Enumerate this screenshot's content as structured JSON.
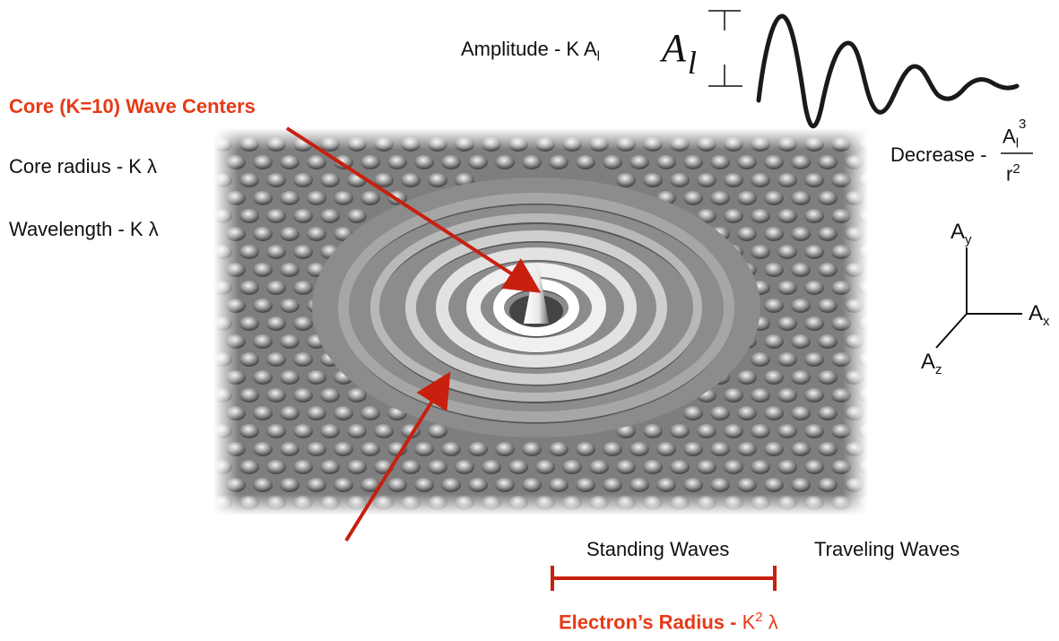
{
  "labels": {
    "amplitude": "Amplitude -  K A",
    "amplitude_sub": "l",
    "al_symbol": "A",
    "al_symbol_sub": "l",
    "core_title": "Core (K=10) Wave Centers",
    "core_radius": "Core radius - K λ",
    "wavelength": "Wavelength - K λ",
    "decrease_prefix": "Decrease -",
    "decrease_num": "A",
    "decrease_num_sub": "l",
    "decrease_num_sup": "3",
    "decrease_den": "r",
    "decrease_den_sup": "2",
    "axis_y": "A",
    "axis_y_sub": "y",
    "axis_x": "A",
    "axis_x_sub": "x",
    "axis_z": "A",
    "axis_z_sub": "z",
    "standing_waves": "Standing Waves",
    "traveling_waves": "Traveling Waves",
    "electron_radius_label": "Electron’s Radius - ",
    "electron_radius_value": "K",
    "electron_radius_sup": "2",
    "electron_radius_tail": " λ"
  },
  "colors": {
    "accent_red": "#e63a17",
    "arrow_red": "#c8200f",
    "surface_gray": "#8a8a8a"
  }
}
